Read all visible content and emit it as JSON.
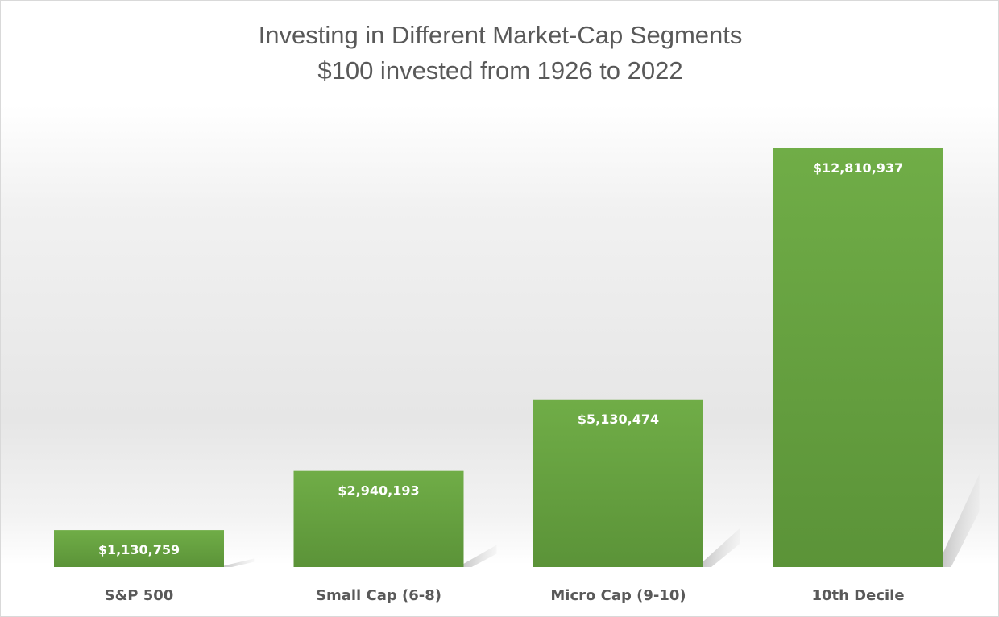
{
  "chart_data": {
    "type": "bar",
    "title": "Investing in Different Market-Cap Segments",
    "subtitle": "$100 invested from 1926 to 2022",
    "categories": [
      "S&P 500",
      "Small Cap (6-8)",
      "Micro Cap (9-10)",
      "10th Decile"
    ],
    "values": [
      1130759,
      2940193,
      5130474,
      12810937
    ],
    "value_labels": [
      "$1,130,759",
      "$2,940,193",
      "$5,130,474",
      "$12,810,937"
    ],
    "xlabel": "",
    "ylabel": "",
    "ylim": [
      0,
      16000000
    ],
    "grid": false,
    "legend": "none",
    "bar_color": "#6aa84f",
    "bar_color_dark": "#5a9438",
    "label_color": "#ffffff",
    "text_color": "#595959"
  }
}
